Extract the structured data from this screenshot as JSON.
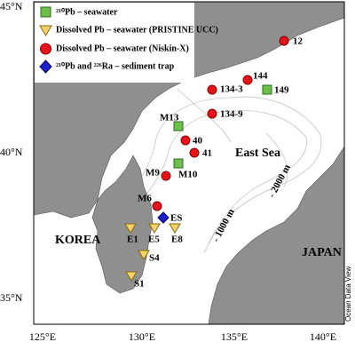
{
  "legend": {
    "items": [
      {
        "label": "²¹⁰Pb – seawater"
      },
      {
        "label": "Dissolved Pb – seawater (PRISTINE UCC)"
      },
      {
        "label": "Dissolved Pb – seawater (Niskin-X)"
      },
      {
        "label": "²¹⁰Pb and ²²⁶Ra – sediment trap"
      }
    ]
  },
  "axes": {
    "lat_labels": [
      "45°N",
      "40°N",
      "35°N"
    ],
    "lon_labels": [
      "125°E",
      "130°E",
      "135°E",
      "140°E"
    ]
  },
  "places": {
    "sea": "East Sea",
    "korea": "KOREA",
    "japan": "JAPAN",
    "contour_1000": "- 1000 m",
    "contour_2000": "- 2000 m",
    "credit": "Ocean Data View"
  },
  "stations": [
    "12",
    "144",
    "134-3",
    "149",
    "134-9",
    "M13",
    "40",
    "41",
    "M10",
    "M9",
    "M6",
    "ES",
    "E1",
    "E5",
    "E8",
    "S4",
    "S1"
  ]
}
